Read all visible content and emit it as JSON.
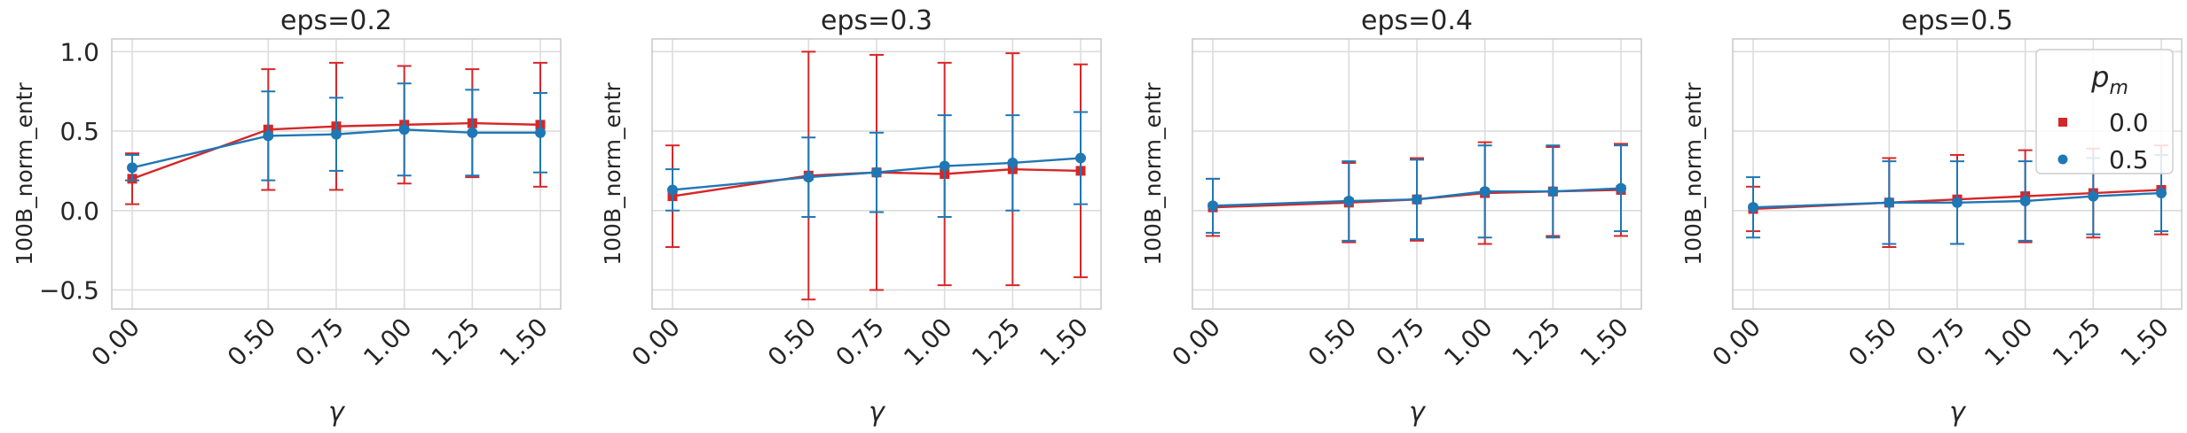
{
  "chart_data": [
    {
      "type": "line",
      "title": "eps=0.2",
      "xlabel": "γ",
      "ylabel": "100B_norm_entr",
      "x": [
        0.0,
        0.5,
        0.75,
        1.0,
        1.25,
        1.5
      ],
      "xtick_labels": [
        "0.00",
        "0.50",
        "0.75",
        "1.00",
        "1.25",
        "1.50"
      ],
      "ylim": [
        -0.62,
        1.08
      ],
      "yticks": [
        -0.5,
        0.0,
        0.5,
        1.0
      ],
      "ytick_labels": [
        "−0.5",
        "0.0",
        "0.5",
        "1.0"
      ],
      "grid": true,
      "series": [
        {
          "name": "0.0",
          "color": "#d62728",
          "marker": "square",
          "values": [
            0.2,
            0.51,
            0.53,
            0.54,
            0.55,
            0.54
          ],
          "err": [
            0.16,
            0.38,
            0.4,
            0.37,
            0.34,
            0.39
          ]
        },
        {
          "name": "0.5",
          "color": "#1f77b4",
          "marker": "circle",
          "values": [
            0.27,
            0.47,
            0.48,
            0.51,
            0.49,
            0.49
          ],
          "err": [
            0.08,
            0.28,
            0.23,
            0.29,
            0.27,
            0.25
          ]
        }
      ]
    },
    {
      "type": "line",
      "title": "eps=0.3",
      "xlabel": "γ",
      "ylabel": "100B_norm_entr",
      "x": [
        0.0,
        0.5,
        0.75,
        1.0,
        1.25,
        1.5
      ],
      "xtick_labels": [
        "0.00",
        "0.50",
        "0.75",
        "1.00",
        "1.25",
        "1.50"
      ],
      "ylim": [
        -0.62,
        1.08
      ],
      "yticks": [
        -0.5,
        0.0,
        0.5,
        1.0
      ],
      "ytick_labels": [
        "",
        "",
        "",
        ""
      ],
      "grid": true,
      "series": [
        {
          "name": "0.0",
          "color": "#d62728",
          "marker": "square",
          "values": [
            0.09,
            0.22,
            0.24,
            0.23,
            0.26,
            0.25
          ],
          "err": [
            0.32,
            0.78,
            0.74,
            0.7,
            0.73,
            0.67
          ]
        },
        {
          "name": "0.5",
          "color": "#1f77b4",
          "marker": "circle",
          "values": [
            0.13,
            0.21,
            0.24,
            0.28,
            0.3,
            0.33
          ],
          "err": [
            0.13,
            0.25,
            0.25,
            0.32,
            0.3,
            0.29
          ]
        }
      ]
    },
    {
      "type": "line",
      "title": "eps=0.4",
      "xlabel": "γ",
      "ylabel": "100B_norm_entr",
      "x": [
        0.0,
        0.5,
        0.75,
        1.0,
        1.25,
        1.5
      ],
      "xtick_labels": [
        "0.00",
        "0.50",
        "0.75",
        "1.00",
        "1.25",
        "1.50"
      ],
      "ylim": [
        -0.62,
        1.08
      ],
      "yticks": [
        -0.5,
        0.0,
        0.5,
        1.0
      ],
      "ytick_labels": [
        "",
        "",
        "",
        ""
      ],
      "grid": true,
      "series": [
        {
          "name": "0.0",
          "color": "#d62728",
          "marker": "square",
          "values": [
            0.02,
            0.05,
            0.07,
            0.11,
            0.12,
            0.13
          ],
          "err": [
            0.18,
            0.25,
            0.26,
            0.32,
            0.28,
            0.29
          ]
        },
        {
          "name": "0.5",
          "color": "#1f77b4",
          "marker": "circle",
          "values": [
            0.03,
            0.06,
            0.07,
            0.12,
            0.12,
            0.14
          ],
          "err": [
            0.17,
            0.25,
            0.25,
            0.29,
            0.29,
            0.27
          ]
        }
      ]
    },
    {
      "type": "line",
      "title": "eps=0.5",
      "xlabel": "γ",
      "ylabel": "100B_norm_entr",
      "x": [
        0.0,
        0.5,
        0.75,
        1.0,
        1.25,
        1.5
      ],
      "xtick_labels": [
        "0.00",
        "0.50",
        "0.75",
        "1.00",
        "1.25",
        "1.50"
      ],
      "ylim": [
        -0.62,
        1.08
      ],
      "yticks": [
        -0.5,
        0.0,
        0.5,
        1.0
      ],
      "ytick_labels": [
        "",
        "",
        "",
        ""
      ],
      "grid": true,
      "legend": {
        "title": "p",
        "title_subscript": "m",
        "placement": "top-right"
      },
      "series": [
        {
          "name": "0.0",
          "color": "#d62728",
          "marker": "square",
          "values": [
            0.01,
            0.05,
            0.07,
            0.09,
            0.11,
            0.13
          ],
          "err": [
            0.14,
            0.28,
            0.28,
            0.29,
            0.28,
            0.28
          ]
        },
        {
          "name": "0.5",
          "color": "#1f77b4",
          "marker": "circle",
          "values": [
            0.02,
            0.05,
            0.05,
            0.06,
            0.09,
            0.11
          ],
          "err": [
            0.19,
            0.26,
            0.26,
            0.25,
            0.24,
            0.24
          ]
        }
      ]
    }
  ]
}
